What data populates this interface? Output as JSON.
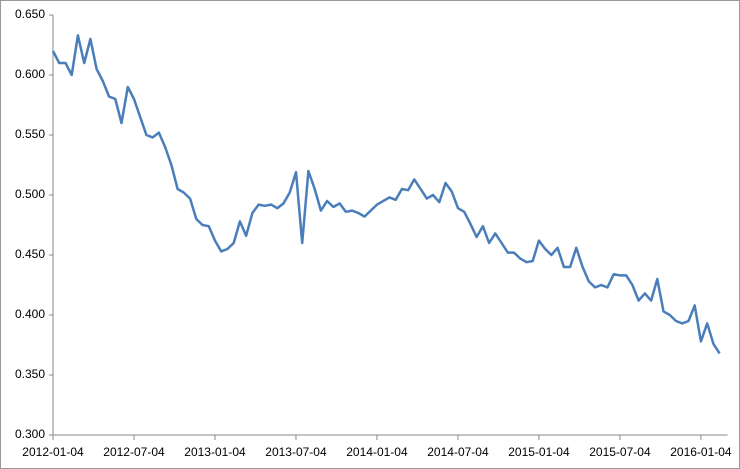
{
  "chart_data": {
    "type": "line",
    "categories": [
      "2012-01-04",
      null,
      null,
      null,
      null,
      null,
      null,
      null,
      null,
      null,
      null,
      null,
      null,
      "2012-07-04",
      null,
      null,
      null,
      null,
      null,
      null,
      null,
      null,
      null,
      null,
      null,
      null,
      "2013-01-04",
      null,
      null,
      null,
      null,
      null,
      null,
      null,
      null,
      null,
      null,
      null,
      null,
      "2013-07-04",
      null,
      null,
      null,
      null,
      null,
      null,
      null,
      null,
      null,
      null,
      null,
      null,
      "2014-01-04",
      null,
      null,
      null,
      null,
      null,
      null,
      null,
      null,
      null,
      null,
      null,
      null,
      "2014-07-04",
      null,
      null,
      null,
      null,
      null,
      null,
      null,
      null,
      null,
      null,
      null,
      null,
      "2015-01-04",
      null,
      null,
      null,
      null,
      null,
      null,
      null,
      null,
      null,
      null,
      null,
      null,
      "2015-07-04",
      null,
      null,
      null,
      null,
      null,
      null,
      null,
      null,
      null,
      null,
      null,
      null,
      "2016-01-04",
      null,
      null,
      null
    ],
    "values": [
      0.62,
      0.61,
      0.61,
      0.6,
      0.633,
      0.61,
      0.63,
      0.605,
      0.595,
      0.582,
      0.58,
      0.56,
      0.59,
      0.58,
      0.565,
      0.55,
      0.548,
      0.552,
      0.54,
      0.525,
      0.505,
      0.502,
      0.497,
      0.48,
      0.475,
      0.474,
      0.462,
      0.453,
      0.455,
      0.46,
      0.478,
      0.466,
      0.485,
      0.492,
      0.491,
      0.492,
      0.489,
      0.493,
      0.502,
      0.519,
      0.46,
      0.52,
      0.505,
      0.487,
      0.495,
      0.49,
      0.493,
      0.486,
      0.487,
      0.485,
      0.482,
      0.487,
      0.492,
      0.495,
      0.498,
      0.496,
      0.505,
      0.504,
      0.513,
      0.505,
      0.497,
      0.5,
      0.494,
      0.51,
      0.503,
      0.489,
      0.486,
      0.476,
      0.465,
      0.474,
      0.46,
      0.468,
      0.46,
      0.452,
      0.452,
      0.447,
      0.444,
      0.445,
      0.462,
      0.455,
      0.45,
      0.456,
      0.44,
      0.44,
      0.456,
      0.44,
      0.428,
      0.423,
      0.425,
      0.423,
      0.434,
      0.433,
      0.433,
      0.425,
      0.412,
      0.418,
      0.412,
      0.43,
      0.403,
      0.4,
      0.395,
      0.393,
      0.395,
      0.408,
      0.378,
      0.393,
      0.376,
      0.368
    ],
    "color": "#4a7ebb",
    "ylim": [
      0.3,
      0.65
    ],
    "yticks": [
      {
        "value": 0.3,
        "label": "0.300"
      },
      {
        "value": 0.35,
        "label": "0.350"
      },
      {
        "value": 0.4,
        "label": "0.400"
      },
      {
        "value": 0.45,
        "label": "0.450"
      },
      {
        "value": 0.5,
        "label": "0.500"
      },
      {
        "value": 0.55,
        "label": "0.550"
      },
      {
        "value": 0.6,
        "label": "0.600"
      },
      {
        "value": 0.65,
        "label": "0.650"
      }
    ],
    "grid": false
  }
}
